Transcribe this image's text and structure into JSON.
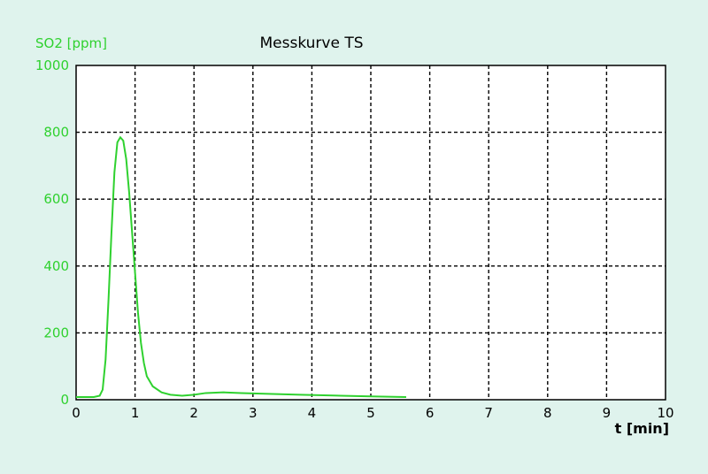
{
  "colors": {
    "background": "#dff3ed",
    "plot_bg": "#ffffff",
    "series": "#2fd12f",
    "y_label": "#2fd12f",
    "grid": "#000000",
    "text": "#000000"
  },
  "chart_data": {
    "type": "line",
    "title": "Messkurve TS",
    "ylabel": "SO2 [ppm]",
    "xlabel": "t [min]",
    "xlim": [
      0,
      10
    ],
    "ylim": [
      0,
      1000
    ],
    "x_ticks": [
      0,
      1,
      2,
      3,
      4,
      5,
      6,
      7,
      8,
      9,
      10
    ],
    "y_ticks": [
      0,
      200,
      400,
      600,
      800,
      1000
    ],
    "x_tick_labels": [
      "0",
      "1",
      "2",
      "3",
      "4",
      "5",
      "6",
      "7",
      "8",
      "9",
      "10"
    ],
    "y_tick_labels": [
      "0",
      "200",
      "400",
      "600",
      "800",
      "1000"
    ],
    "grid": true,
    "series": [
      {
        "points": [
          [
            0.0,
            8
          ],
          [
            0.3,
            8
          ],
          [
            0.4,
            12
          ],
          [
            0.45,
            30
          ],
          [
            0.5,
            120
          ],
          [
            0.55,
            300
          ],
          [
            0.6,
            500
          ],
          [
            0.65,
            680
          ],
          [
            0.7,
            770
          ],
          [
            0.75,
            785
          ],
          [
            0.8,
            775
          ],
          [
            0.85,
            720
          ],
          [
            0.9,
            620
          ],
          [
            0.95,
            500
          ],
          [
            1.0,
            380
          ],
          [
            1.05,
            260
          ],
          [
            1.1,
            170
          ],
          [
            1.15,
            110
          ],
          [
            1.2,
            70
          ],
          [
            1.3,
            40
          ],
          [
            1.45,
            22
          ],
          [
            1.6,
            15
          ],
          [
            1.8,
            12
          ],
          [
            2.0,
            15
          ],
          [
            2.2,
            20
          ],
          [
            2.5,
            22
          ],
          [
            2.8,
            20
          ],
          [
            3.2,
            18
          ],
          [
            3.8,
            15
          ],
          [
            4.5,
            12
          ],
          [
            5.0,
            10
          ],
          [
            5.3,
            9
          ],
          [
            5.6,
            8
          ]
        ]
      }
    ]
  }
}
